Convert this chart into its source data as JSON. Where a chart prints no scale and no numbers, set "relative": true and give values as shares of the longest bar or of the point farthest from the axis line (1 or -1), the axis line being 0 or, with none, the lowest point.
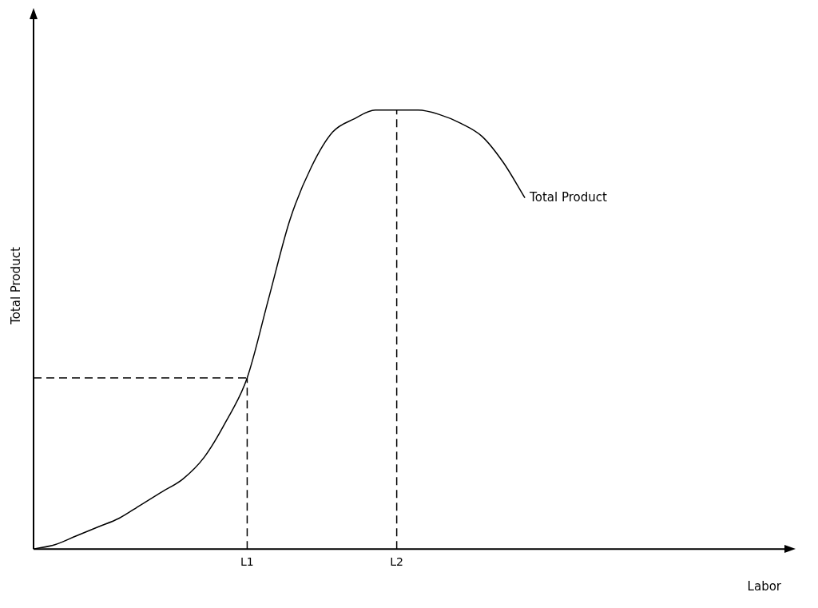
{
  "chart_data": {
    "type": "line",
    "relative": true,
    "xlabel": "Labor",
    "ylabel": "Total Product",
    "tick_labels": "x",
    "grid": false,
    "legend": false,
    "marker": "none",
    "line_style": "solid",
    "categories": [
      null,
      null,
      null,
      null,
      null,
      null,
      null,
      null,
      null,
      null,
      "L1",
      null,
      null,
      null,
      null,
      null,
      null,
      "L2",
      null,
      null,
      null,
      null,
      null,
      null,
      null,
      null,
      null,
      null,
      null,
      null,
      null,
      null,
      null,
      null,
      null,
      null
    ],
    "series": [
      {
        "name": "Total Product",
        "color": "#000000",
        "values": [
          0,
          0.01,
          0.03,
          0.05,
          0.07,
          0.1,
          0.13,
          0.16,
          0.21,
          0.29,
          0.39,
          0.57,
          0.75,
          0.87,
          0.95,
          0.98,
          1,
          1,
          1,
          0.99,
          0.97,
          0.94,
          0.88,
          0.8,
          null,
          null,
          null,
          null,
          null,
          null,
          null,
          null,
          null,
          null,
          null,
          null
        ]
      }
    ],
    "ref_lines": [
      {
        "axis": "x",
        "value": "L1",
        "line_style": "dashed",
        "color": "#000000"
      },
      {
        "axis": "x",
        "value": "L2",
        "line_style": "dashed",
        "color": "#000000"
      },
      {
        "axis": "y",
        "value": 0.39,
        "line_style": "dashed",
        "color": "#000000"
      }
    ]
  }
}
